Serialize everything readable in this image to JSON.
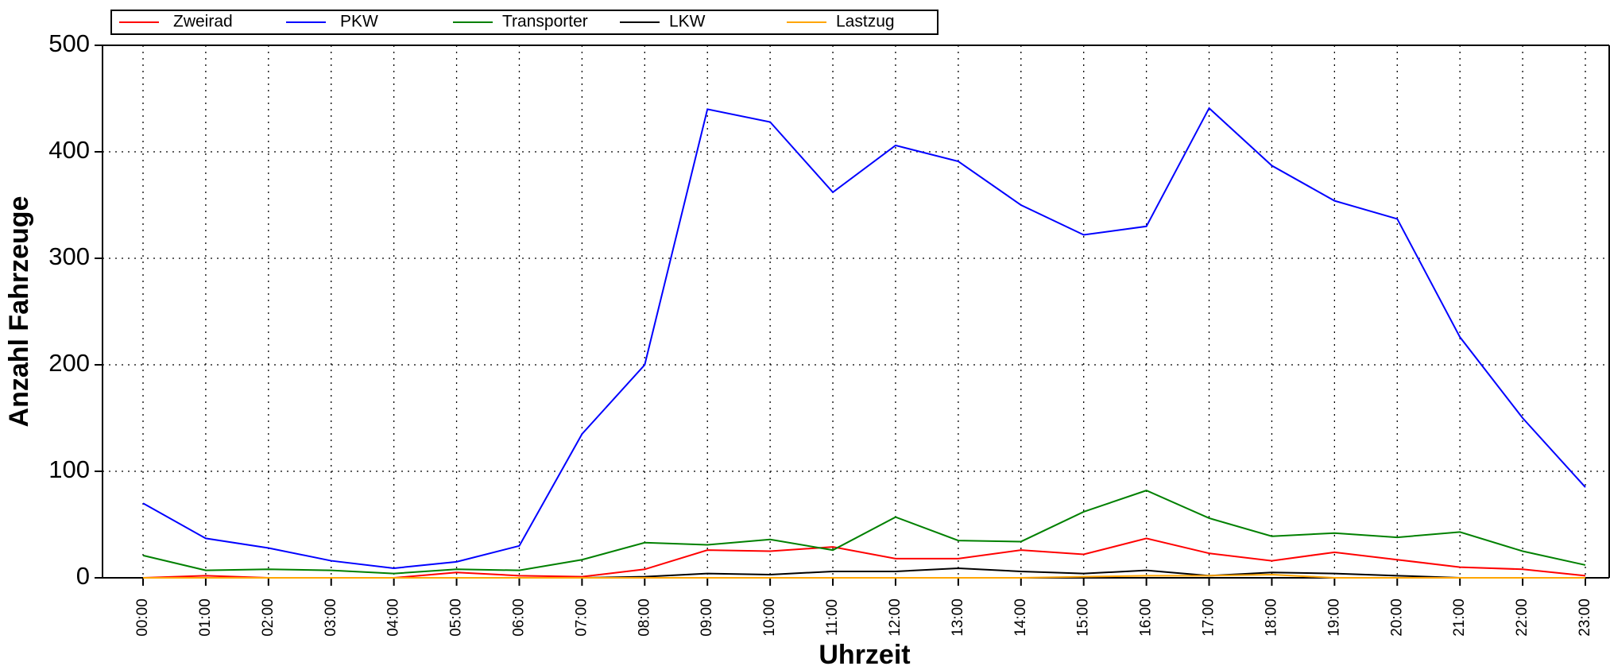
{
  "chart_data": {
    "type": "line",
    "xlabel": "Uhrzeit",
    "ylabel": "Anzahl Fahrzeuge",
    "categories": [
      "00:00",
      "01:00",
      "02:00",
      "03:00",
      "04:00",
      "05:00",
      "06:00",
      "07:00",
      "08:00",
      "09:00",
      "10:00",
      "11:00",
      "12:00",
      "13:00",
      "14:00",
      "15:00",
      "16:00",
      "17:00",
      "18:00",
      "19:00",
      "20:00",
      "21:00",
      "22:00",
      "23:00"
    ],
    "series": [
      {
        "name": "Zweirad",
        "color": "#ff0000",
        "values": [
          0,
          2,
          0,
          0,
          0,
          5,
          2,
          1,
          8,
          26,
          25,
          29,
          18,
          18,
          26,
          22,
          37,
          23,
          16,
          24,
          17,
          10,
          8,
          2
        ]
      },
      {
        "name": "PKW",
        "color": "#0000ff",
        "values": [
          70,
          37,
          28,
          16,
          9,
          15,
          30,
          135,
          200,
          440,
          428,
          362,
          406,
          391,
          350,
          322,
          330,
          441,
          387,
          354,
          337,
          226,
          150,
          85
        ]
      },
      {
        "name": "Transporter",
        "color": "#008000",
        "values": [
          21,
          7,
          8,
          7,
          4,
          8,
          7,
          17,
          33,
          31,
          36,
          26,
          57,
          35,
          34,
          62,
          82,
          56,
          39,
          42,
          38,
          43,
          25,
          12
        ]
      },
      {
        "name": "LKW",
        "color": "#000000",
        "values": [
          0,
          0,
          0,
          0,
          0,
          0,
          0,
          0,
          1,
          4,
          3,
          6,
          6,
          9,
          6,
          4,
          7,
          2,
          5,
          4,
          2,
          0,
          0,
          0
        ]
      },
      {
        "name": "Lastzug",
        "color": "#ffa500",
        "values": [
          0,
          0,
          0,
          0,
          0,
          0,
          0,
          0,
          0,
          0,
          0,
          0,
          0,
          0,
          0,
          1,
          2,
          2,
          3,
          0,
          0,
          0,
          0,
          0
        ]
      }
    ],
    "ylim": [
      0,
      500
    ],
    "yticks": [
      0,
      100,
      200,
      300,
      400,
      500
    ],
    "grid": true
  }
}
